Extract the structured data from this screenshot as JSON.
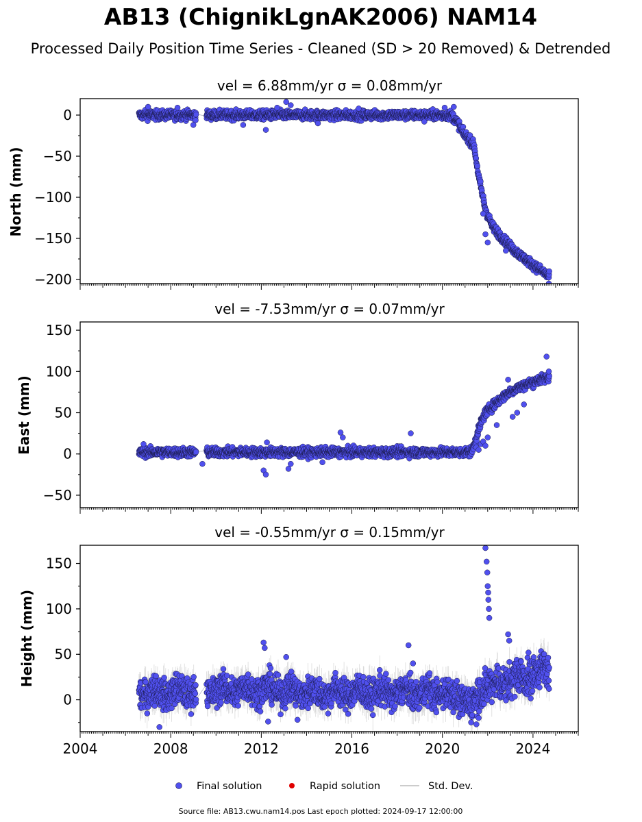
{
  "figure": {
    "title": "AB13 (ChignikLgnAK2006) NAM14",
    "subtitle": "Processed Daily Position Time Series - Cleaned (SD > 20 Removed) & Detrended",
    "source": "Source file: AB13.cwu.nam14.pos  Last epoch plotted: 2024-09-17 12:00:00"
  },
  "legend": {
    "final": "Final solution",
    "rapid": "Rapid solution",
    "std": "Std. Dev."
  },
  "colors": {
    "final": "#5050ee",
    "final_edge": "#1a1a4a",
    "rapid": "#e00000",
    "std": "#bbbbbb"
  },
  "chart_data": [
    {
      "type": "scatter",
      "title": "vel = 6.88mm/yr   σ = 0.08mm/yr",
      "ylabel": "North (mm)",
      "xlim": [
        2004.0,
        2026.0
      ],
      "ylim": [
        -205,
        20
      ],
      "yticks": [
        0,
        -50,
        -100,
        -150,
        -200
      ],
      "yticklabels": [
        "0",
        "−50",
        "−100",
        "−150",
        "−200"
      ],
      "xticks": [
        2004,
        2008,
        2012,
        2016,
        2020,
        2024
      ],
      "xticklabels": [],
      "series": [
        {
          "name": "Final solution",
          "trend": [
            [
              2006.6,
              0
            ],
            [
              2009.1,
              0
            ],
            [
              2009.6,
              0
            ],
            [
              2020.4,
              0
            ],
            [
              2020.7,
              -10
            ],
            [
              2020.9,
              -22
            ],
            [
              2021.2,
              -30
            ],
            [
              2021.4,
              -38
            ],
            [
              2021.6,
              -75
            ],
            [
              2021.75,
              -95
            ],
            [
              2021.9,
              -115
            ],
            [
              2022.2,
              -135
            ],
            [
              2022.6,
              -148
            ],
            [
              2023.0,
              -160
            ],
            [
              2023.5,
              -172
            ],
            [
              2024.0,
              -182
            ],
            [
              2024.5,
              -192
            ],
            [
              2024.72,
              -197
            ]
          ],
          "outliers": [
            [
              2007.0,
              10
            ],
            [
              2008.3,
              9
            ],
            [
              2009.0,
              -12
            ],
            [
              2011.2,
              -12
            ],
            [
              2012.2,
              -18
            ],
            [
              2012.7,
              9
            ],
            [
              2013.1,
              16
            ],
            [
              2013.3,
              12
            ],
            [
              2014.5,
              -10
            ],
            [
              2016.3,
              8
            ],
            [
              2019.2,
              -8
            ],
            [
              2020.1,
              9
            ],
            [
              2020.5,
              10
            ],
            [
              2021.8,
              -120
            ],
            [
              2021.9,
              -145
            ],
            [
              2022.0,
              -155
            ],
            [
              2022.8,
              -165
            ],
            [
              2024.7,
              -205
            ]
          ]
        }
      ]
    },
    {
      "type": "scatter",
      "title": "vel = -7.53mm/yr   σ = 0.07mm/yr",
      "ylabel": "East (mm)",
      "xlim": [
        2004.0,
        2026.0
      ],
      "ylim": [
        -65,
        160
      ],
      "yticks": [
        150,
        100,
        50,
        0,
        -50
      ],
      "yticklabels": [
        "150",
        "100",
        "50",
        "0",
        "−50"
      ],
      "xticks": [
        2004,
        2008,
        2012,
        2016,
        2020,
        2024
      ],
      "xticklabels": [],
      "series": [
        {
          "name": "Final solution",
          "trend": [
            [
              2006.6,
              2
            ],
            [
              2009.1,
              2
            ],
            [
              2009.6,
              2
            ],
            [
              2020.5,
              2
            ],
            [
              2021.0,
              2
            ],
            [
              2021.3,
              3
            ],
            [
              2021.5,
              20
            ],
            [
              2021.7,
              38
            ],
            [
              2021.9,
              50
            ],
            [
              2022.3,
              60
            ],
            [
              2022.8,
              72
            ],
            [
              2023.3,
              80
            ],
            [
              2023.8,
              85
            ],
            [
              2024.3,
              90
            ],
            [
              2024.72,
              93
            ]
          ],
          "outliers": [
            [
              2006.8,
              12
            ],
            [
              2009.4,
              -12
            ],
            [
              2012.1,
              -20
            ],
            [
              2012.2,
              -25
            ],
            [
              2012.25,
              14
            ],
            [
              2013.2,
              -18
            ],
            [
              2013.3,
              -12
            ],
            [
              2014.7,
              -10
            ],
            [
              2015.5,
              26
            ],
            [
              2015.6,
              20
            ],
            [
              2018.6,
              25
            ],
            [
              2021.5,
              8
            ],
            [
              2021.6,
              5
            ],
            [
              2021.7,
              12
            ],
            [
              2021.8,
              15
            ],
            [
              2021.9,
              10
            ],
            [
              2022.0,
              20
            ],
            [
              2022.4,
              35
            ],
            [
              2022.9,
              90
            ],
            [
              2023.1,
              45
            ],
            [
              2023.3,
              50
            ],
            [
              2023.6,
              60
            ],
            [
              2024.6,
              118
            ],
            [
              2024.7,
              100
            ]
          ]
        }
      ]
    },
    {
      "type": "scatter",
      "title": "vel = -0.55mm/yr   σ = 0.15mm/yr",
      "ylabel": "Height (mm)",
      "xlim": [
        2004.0,
        2026.0
      ],
      "ylim": [
        -35,
        170
      ],
      "yticks": [
        150,
        100,
        50,
        0
      ],
      "yticklabels": [
        "150",
        "100",
        "50",
        "0"
      ],
      "xticks": [
        2004,
        2008,
        2012,
        2016,
        2020,
        2024
      ],
      "xticklabels": [
        "2004",
        "2008",
        "2012",
        "2016",
        "2020",
        "2024"
      ],
      "series": [
        {
          "name": "Final solution",
          "trend": [
            [
              2006.6,
              8
            ],
            [
              2008.0,
              8
            ],
            [
              2009.1,
              10
            ],
            [
              2009.6,
              10
            ],
            [
              2012.0,
              12
            ],
            [
              2014.0,
              8
            ],
            [
              2016.0,
              8
            ],
            [
              2018.0,
              8
            ],
            [
              2020.0,
              8
            ],
            [
              2021.0,
              0
            ],
            [
              2021.3,
              -8
            ],
            [
              2021.6,
              10
            ],
            [
              2022.0,
              15
            ],
            [
              2022.5,
              18
            ],
            [
              2023.0,
              22
            ],
            [
              2023.5,
              25
            ],
            [
              2024.0,
              28
            ],
            [
              2024.72,
              35
            ]
          ],
          "outliers": [
            [
              2007.5,
              -30
            ],
            [
              2012.1,
              63
            ],
            [
              2012.15,
              57
            ],
            [
              2012.3,
              -24
            ],
            [
              2013.1,
              47
            ],
            [
              2013.6,
              -22
            ],
            [
              2018.5,
              60
            ],
            [
              2018.7,
              40
            ],
            [
              2021.5,
              -27
            ],
            [
              2021.6,
              -20
            ],
            [
              2021.9,
              167
            ],
            [
              2021.95,
              152
            ],
            [
              2021.98,
              140
            ],
            [
              2022.0,
              125
            ],
            [
              2022.02,
              118
            ],
            [
              2022.03,
              110
            ],
            [
              2022.05,
              100
            ],
            [
              2022.07,
              90
            ],
            [
              2022.9,
              72
            ],
            [
              2022.95,
              65
            ],
            [
              2023.8,
              52
            ]
          ]
        }
      ]
    }
  ]
}
